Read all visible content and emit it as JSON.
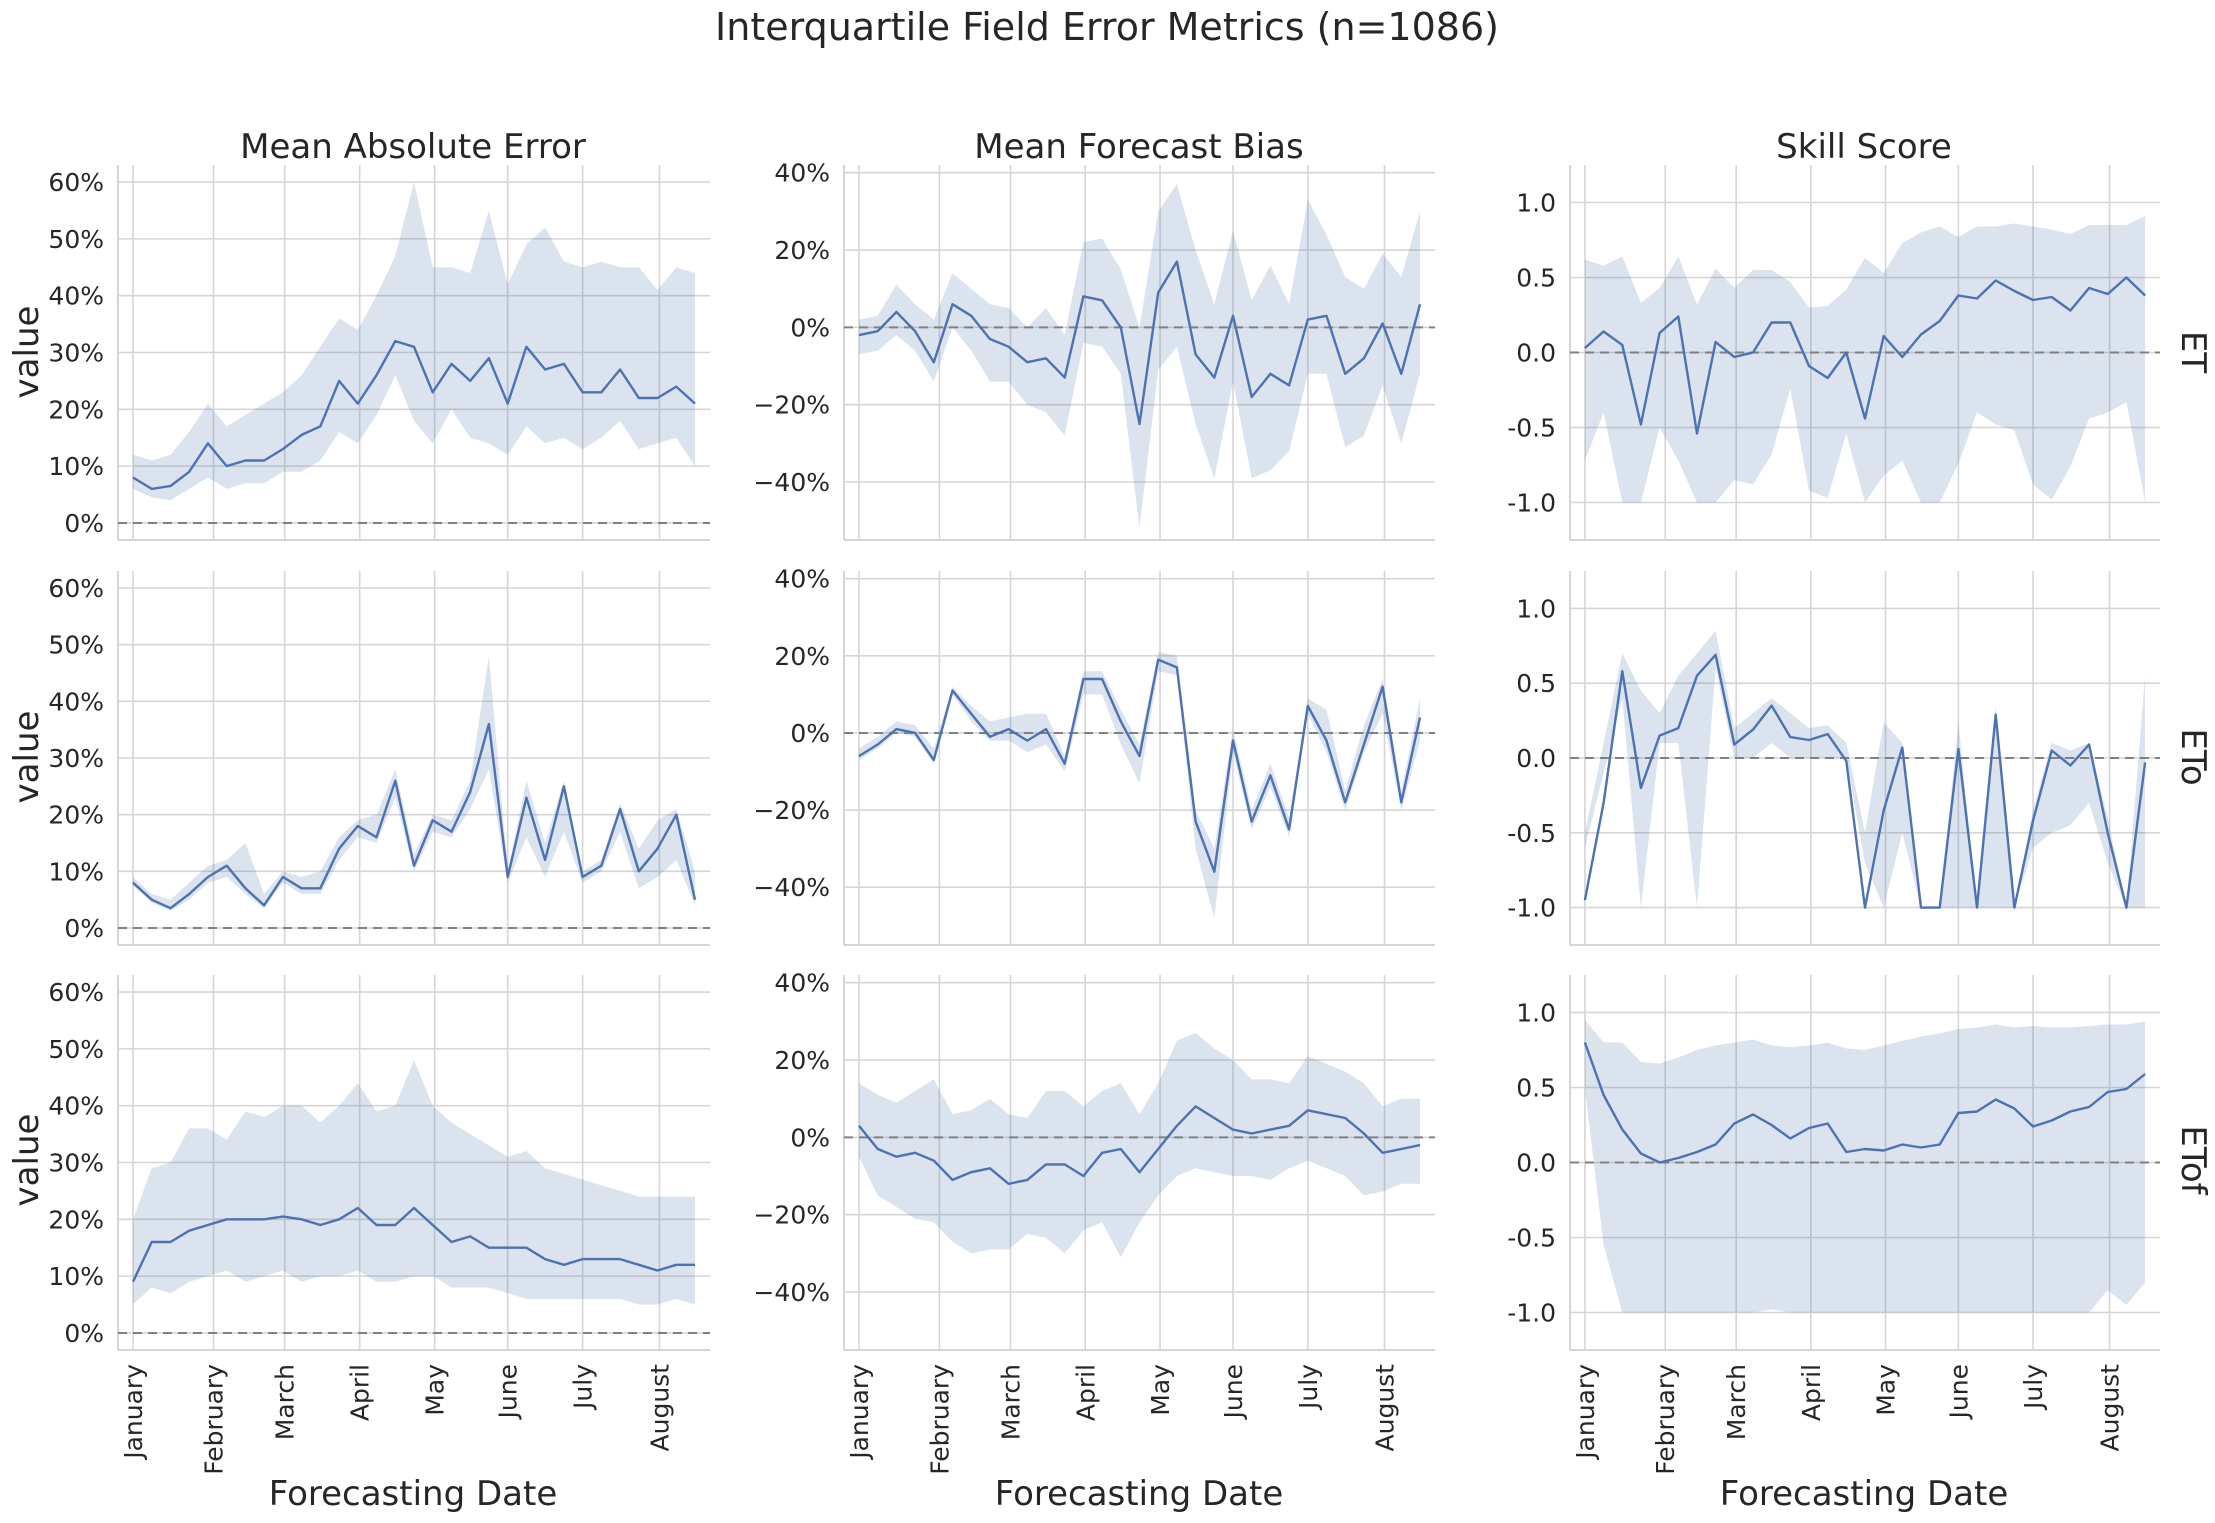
{
  "title": "Interquartile Field Error Metrics (n=1086)",
  "columns": [
    "Mean Absolute Error",
    "Mean Forecast Bias",
    "Skill Score"
  ],
  "rows": [
    "ET",
    "ETo",
    "ETof"
  ],
  "ylabel": "value",
  "xlabel": "Forecasting Date",
  "x_tick_labels": [
    "January",
    "February",
    "March",
    "April",
    "May",
    "June",
    "July",
    "August"
  ],
  "y_tick_labels": {
    "mae": [
      "0%",
      "10%",
      "20%",
      "30%",
      "40%",
      "50%",
      "60%"
    ],
    "bias": [
      "−40%",
      "−20%",
      "0%",
      "20%",
      "40%"
    ],
    "skill": [
      "-1.0",
      "-0.5",
      "0.0",
      "0.5",
      "1.0"
    ]
  },
  "colors": {
    "line": "#4c72b0",
    "band": "#4c72b0",
    "grid": "#d5d5d5",
    "reference": "#808080"
  },
  "chart_data": {
    "type": "line",
    "x_unit": "week of year",
    "x_ticks": [
      1,
      5.3,
      9.1,
      13.1,
      17.1,
      21,
      25,
      29.1
    ],
    "panels": [
      {
        "row": "ET",
        "col": "Mean Absolute Error",
        "ylim": [
          -0.03,
          0.63
        ],
        "reference": 0,
        "median": [
          0.08,
          0.06,
          0.065,
          0.09,
          0.14,
          0.1,
          0.11,
          0.11,
          0.13,
          0.155,
          0.17,
          0.25,
          0.21,
          0.26,
          0.32,
          0.31,
          0.23,
          0.28,
          0.25,
          0.29,
          0.21,
          0.31,
          0.27,
          0.28,
          0.23,
          0.23,
          0.27,
          0.22,
          0.22,
          0.24,
          0.21
        ],
        "q1": [
          0.06,
          0.045,
          0.04,
          0.06,
          0.08,
          0.06,
          0.07,
          0.07,
          0.09,
          0.09,
          0.11,
          0.16,
          0.14,
          0.19,
          0.26,
          0.18,
          0.14,
          0.2,
          0.15,
          0.14,
          0.12,
          0.17,
          0.14,
          0.15,
          0.13,
          0.15,
          0.18,
          0.13,
          0.14,
          0.15,
          0.1
        ],
        "q3": [
          0.12,
          0.11,
          0.12,
          0.16,
          0.21,
          0.17,
          0.19,
          0.21,
          0.23,
          0.26,
          0.31,
          0.36,
          0.34,
          0.4,
          0.47,
          0.6,
          0.45,
          0.45,
          0.44,
          0.55,
          0.42,
          0.49,
          0.52,
          0.46,
          0.45,
          0.46,
          0.45,
          0.45,
          0.41,
          0.45,
          0.44
        ]
      },
      {
        "row": "ET",
        "col": "Mean Forecast Bias",
        "ylim": [
          -0.55,
          0.42
        ],
        "reference": 0,
        "median": [
          -0.02,
          -0.01,
          0.04,
          -0.01,
          -0.09,
          0.06,
          0.03,
          -0.03,
          -0.05,
          -0.09,
          -0.08,
          -0.13,
          0.08,
          0.07,
          0.0,
          -0.25,
          0.09,
          0.17,
          -0.07,
          -0.13,
          0.03,
          -0.18,
          -0.12,
          -0.15,
          0.02,
          0.03,
          -0.12,
          -0.08,
          0.01,
          -0.12,
          0.06
        ],
        "q1": [
          -0.07,
          -0.06,
          -0.02,
          -0.06,
          -0.14,
          0.0,
          -0.06,
          -0.14,
          -0.14,
          -0.2,
          -0.22,
          -0.28,
          -0.04,
          -0.05,
          -0.12,
          -0.52,
          -0.11,
          -0.05,
          -0.25,
          -0.39,
          -0.14,
          -0.39,
          -0.37,
          -0.32,
          -0.12,
          -0.12,
          -0.31,
          -0.28,
          -0.15,
          -0.3,
          -0.12
        ],
        "q3": [
          0.02,
          0.03,
          0.11,
          0.06,
          0.02,
          0.14,
          0.1,
          0.06,
          0.05,
          0.0,
          0.05,
          -0.02,
          0.22,
          0.23,
          0.15,
          0.0,
          0.3,
          0.37,
          0.2,
          0.06,
          0.25,
          0.07,
          0.16,
          0.06,
          0.33,
          0.24,
          0.13,
          0.1,
          0.19,
          0.13,
          0.3
        ]
      },
      {
        "row": "ET",
        "col": "Skill Score",
        "ylim": [
          -1.25,
          1.25
        ],
        "reference": 0,
        "median": [
          0.03,
          0.14,
          0.05,
          -0.48,
          0.13,
          0.24,
          -0.54,
          0.07,
          -0.03,
          0.0,
          0.2,
          0.2,
          -0.09,
          -0.17,
          0.0,
          -0.44,
          0.11,
          -0.03,
          0.12,
          0.21,
          0.38,
          0.36,
          0.48,
          0.41,
          0.35,
          0.37,
          0.28,
          0.43,
          0.39,
          0.5,
          0.38
        ],
        "q1": [
          -0.72,
          -0.4,
          -1.0,
          -1.0,
          -0.5,
          -0.72,
          -1.0,
          -1.0,
          -0.85,
          -0.88,
          -0.68,
          -0.24,
          -0.92,
          -0.97,
          -0.54,
          -1.0,
          -0.82,
          -0.72,
          -1.0,
          -1.0,
          -0.74,
          -0.4,
          -0.48,
          -0.52,
          -0.88,
          -0.98,
          -0.76,
          -0.44,
          -0.4,
          -0.33,
          -1.0
        ],
        "q3": [
          0.62,
          0.58,
          0.64,
          0.33,
          0.43,
          0.64,
          0.32,
          0.56,
          0.43,
          0.55,
          0.55,
          0.47,
          0.3,
          0.31,
          0.42,
          0.63,
          0.53,
          0.73,
          0.8,
          0.84,
          0.77,
          0.84,
          0.84,
          0.86,
          0.84,
          0.82,
          0.79,
          0.85,
          0.85,
          0.85,
          0.91
        ]
      },
      {
        "row": "ETo",
        "col": "Mean Absolute Error",
        "ylim": [
          -0.03,
          0.63
        ],
        "reference": 0,
        "median": [
          0.08,
          0.05,
          0.035,
          0.06,
          0.09,
          0.11,
          0.07,
          0.04,
          0.09,
          0.07,
          0.07,
          0.14,
          0.18,
          0.16,
          0.26,
          0.11,
          0.19,
          0.17,
          0.24,
          0.36,
          0.09,
          0.23,
          0.12,
          0.25,
          0.09,
          0.11,
          0.21,
          0.1,
          0.14,
          0.2,
          0.05
        ],
        "q1": [
          0.075,
          0.045,
          0.03,
          0.05,
          0.08,
          0.09,
          0.06,
          0.035,
          0.08,
          0.06,
          0.06,
          0.12,
          0.16,
          0.15,
          0.23,
          0.1,
          0.17,
          0.16,
          0.21,
          0.28,
          0.08,
          0.16,
          0.09,
          0.17,
          0.08,
          0.1,
          0.17,
          0.07,
          0.09,
          0.12,
          0.04
        ],
        "q3": [
          0.09,
          0.06,
          0.05,
          0.08,
          0.11,
          0.12,
          0.15,
          0.06,
          0.1,
          0.09,
          0.1,
          0.16,
          0.19,
          0.2,
          0.28,
          0.13,
          0.2,
          0.19,
          0.26,
          0.48,
          0.1,
          0.26,
          0.15,
          0.26,
          0.1,
          0.12,
          0.22,
          0.14,
          0.19,
          0.21,
          0.1
        ]
      },
      {
        "row": "ETo",
        "col": "Mean Forecast Bias",
        "ylim": [
          -0.55,
          0.42
        ],
        "reference": 0,
        "median": [
          -0.06,
          -0.03,
          0.01,
          0.0,
          -0.07,
          0.11,
          0.05,
          -0.01,
          0.01,
          -0.02,
          0.01,
          -0.08,
          0.14,
          0.14,
          0.03,
          -0.06,
          0.19,
          0.17,
          -0.23,
          -0.36,
          -0.02,
          -0.23,
          -0.11,
          -0.25,
          0.07,
          -0.02,
          -0.18,
          -0.03,
          0.12,
          -0.18,
          0.04
        ],
        "q1": [
          -0.07,
          -0.04,
          0.0,
          -0.01,
          -0.08,
          0.1,
          0.03,
          -0.02,
          -0.02,
          -0.05,
          -0.03,
          -0.1,
          0.1,
          0.1,
          -0.03,
          -0.13,
          0.16,
          0.15,
          -0.3,
          -0.48,
          -0.05,
          -0.25,
          -0.14,
          -0.27,
          0.05,
          -0.05,
          -0.2,
          -0.05,
          0.05,
          -0.2,
          -0.02
        ],
        "q3": [
          -0.04,
          -0.01,
          0.03,
          0.02,
          -0.04,
          0.12,
          0.07,
          0.03,
          0.04,
          0.05,
          0.05,
          -0.06,
          0.16,
          0.16,
          0.06,
          -0.03,
          0.21,
          0.2,
          -0.2,
          -0.3,
          0.01,
          -0.2,
          -0.08,
          -0.22,
          0.09,
          0.06,
          -0.15,
          0.02,
          0.14,
          -0.15,
          0.09
        ]
      },
      {
        "row": "ETo",
        "col": "Skill Score",
        "ylim": [
          -1.25,
          1.25
        ],
        "reference": 0,
        "median": [
          -0.95,
          -0.3,
          0.58,
          -0.2,
          0.15,
          0.2,
          0.55,
          0.69,
          0.09,
          0.19,
          0.35,
          0.14,
          0.12,
          0.16,
          -0.02,
          -1.0,
          -0.35,
          0.07,
          -1.0,
          -1.0,
          0.06,
          -1.0,
          0.29,
          -1.0,
          -0.42,
          0.05,
          -0.05,
          0.09,
          -0.5,
          -1.0,
          -0.03
        ],
        "q1": [
          -0.6,
          -0.1,
          0.4,
          -1.0,
          0.1,
          0.1,
          -1.0,
          0.6,
          0.0,
          0.0,
          0.1,
          0.0,
          0.0,
          0.0,
          0.0,
          -0.7,
          -1.0,
          -0.5,
          -1.0,
          -1.0,
          -1.0,
          -1.0,
          -1.0,
          -1.0,
          -0.6,
          -0.5,
          -0.45,
          -0.3,
          -0.7,
          -1.0,
          -1.0
        ],
        "q3": [
          -0.5,
          0.1,
          0.7,
          0.45,
          0.3,
          0.55,
          0.7,
          0.85,
          0.2,
          0.3,
          0.4,
          0.3,
          0.2,
          0.22,
          0.1,
          -0.5,
          0.24,
          0.1,
          -1.0,
          -1.0,
          0.24,
          -1.0,
          0.35,
          -1.0,
          -0.35,
          0.1,
          0.05,
          0.1,
          -0.4,
          -1.0,
          0.55
        ]
      },
      {
        "row": "ETof",
        "col": "Mean Absolute Error",
        "ylim": [
          -0.03,
          0.63
        ],
        "reference": 0,
        "median": [
          0.09,
          0.16,
          0.16,
          0.18,
          0.19,
          0.2,
          0.2,
          0.2,
          0.205,
          0.2,
          0.19,
          0.2,
          0.22,
          0.19,
          0.19,
          0.22,
          0.19,
          0.16,
          0.17,
          0.15,
          0.15,
          0.15,
          0.13,
          0.12,
          0.13,
          0.13,
          0.13,
          0.12,
          0.11,
          0.12,
          0.12
        ],
        "q1": [
          0.05,
          0.08,
          0.07,
          0.09,
          0.1,
          0.11,
          0.09,
          0.1,
          0.11,
          0.09,
          0.1,
          0.1,
          0.11,
          0.09,
          0.09,
          0.1,
          0.1,
          0.08,
          0.08,
          0.08,
          0.07,
          0.06,
          0.06,
          0.06,
          0.06,
          0.06,
          0.06,
          0.05,
          0.05,
          0.06,
          0.05
        ],
        "q3": [
          0.2,
          0.29,
          0.3,
          0.36,
          0.36,
          0.34,
          0.39,
          0.38,
          0.4,
          0.4,
          0.37,
          0.4,
          0.44,
          0.39,
          0.4,
          0.48,
          0.4,
          0.37,
          0.35,
          0.33,
          0.31,
          0.32,
          0.29,
          0.28,
          0.27,
          0.26,
          0.25,
          0.24,
          0.24,
          0.24,
          0.24
        ]
      },
      {
        "row": "ETof",
        "col": "Mean Forecast Bias",
        "ylim": [
          -0.55,
          0.42
        ],
        "reference": 0,
        "median": [
          0.03,
          -0.03,
          -0.05,
          -0.04,
          -0.06,
          -0.11,
          -0.09,
          -0.08,
          -0.12,
          -0.11,
          -0.07,
          -0.07,
          -0.1,
          -0.04,
          -0.03,
          -0.09,
          -0.03,
          0.03,
          0.08,
          0.05,
          0.02,
          0.01,
          0.02,
          0.03,
          0.07,
          0.06,
          0.05,
          0.01,
          -0.04,
          -0.03,
          -0.02
        ],
        "q1": [
          -0.05,
          -0.15,
          -0.18,
          -0.21,
          -0.22,
          -0.27,
          -0.3,
          -0.29,
          -0.29,
          -0.25,
          -0.26,
          -0.3,
          -0.24,
          -0.22,
          -0.31,
          -0.22,
          -0.15,
          -0.1,
          -0.08,
          -0.09,
          -0.1,
          -0.1,
          -0.11,
          -0.08,
          -0.06,
          -0.08,
          -0.1,
          -0.15,
          -0.14,
          -0.12,
          -0.12
        ],
        "q3": [
          0.14,
          0.11,
          0.09,
          0.12,
          0.15,
          0.06,
          0.07,
          0.1,
          0.06,
          0.05,
          0.12,
          0.12,
          0.08,
          0.12,
          0.14,
          0.06,
          0.14,
          0.25,
          0.27,
          0.23,
          0.2,
          0.15,
          0.15,
          0.14,
          0.21,
          0.19,
          0.17,
          0.14,
          0.08,
          0.1,
          0.1
        ],
        "note_ignore": ""
      },
      {
        "row": "ETof",
        "col": "Skill Score",
        "ylim": [
          -1.25,
          1.25
        ],
        "reference": 0,
        "median": [
          0.8,
          0.45,
          0.22,
          0.06,
          0.0,
          0.03,
          0.07,
          0.12,
          0.26,
          0.32,
          0.25,
          0.16,
          0.23,
          0.26,
          0.07,
          0.09,
          0.08,
          0.12,
          0.1,
          0.12,
          0.33,
          0.34,
          0.42,
          0.36,
          0.24,
          0.28,
          0.34,
          0.37,
          0.47,
          0.49,
          0.59
        ],
        "q1": [
          0.5,
          -0.55,
          -1.0,
          -1.0,
          -1.0,
          -1.0,
          -1.0,
          -1.0,
          -1.0,
          -1.0,
          -0.98,
          -1.0,
          -1.0,
          -1.0,
          -1.0,
          -1.0,
          -1.0,
          -1.0,
          -1.0,
          -1.0,
          -1.0,
          -1.0,
          -1.0,
          -1.0,
          -1.0,
          -1.0,
          -1.0,
          -1.0,
          -0.85,
          -0.95,
          -0.8
        ],
        "q3": [
          0.95,
          0.8,
          0.8,
          0.67,
          0.66,
          0.7,
          0.75,
          0.78,
          0.8,
          0.82,
          0.78,
          0.77,
          0.78,
          0.8,
          0.76,
          0.75,
          0.78,
          0.81,
          0.84,
          0.86,
          0.89,
          0.9,
          0.92,
          0.9,
          0.91,
          0.9,
          0.9,
          0.91,
          0.92,
          0.92,
          0.94
        ]
      }
    ]
  }
}
